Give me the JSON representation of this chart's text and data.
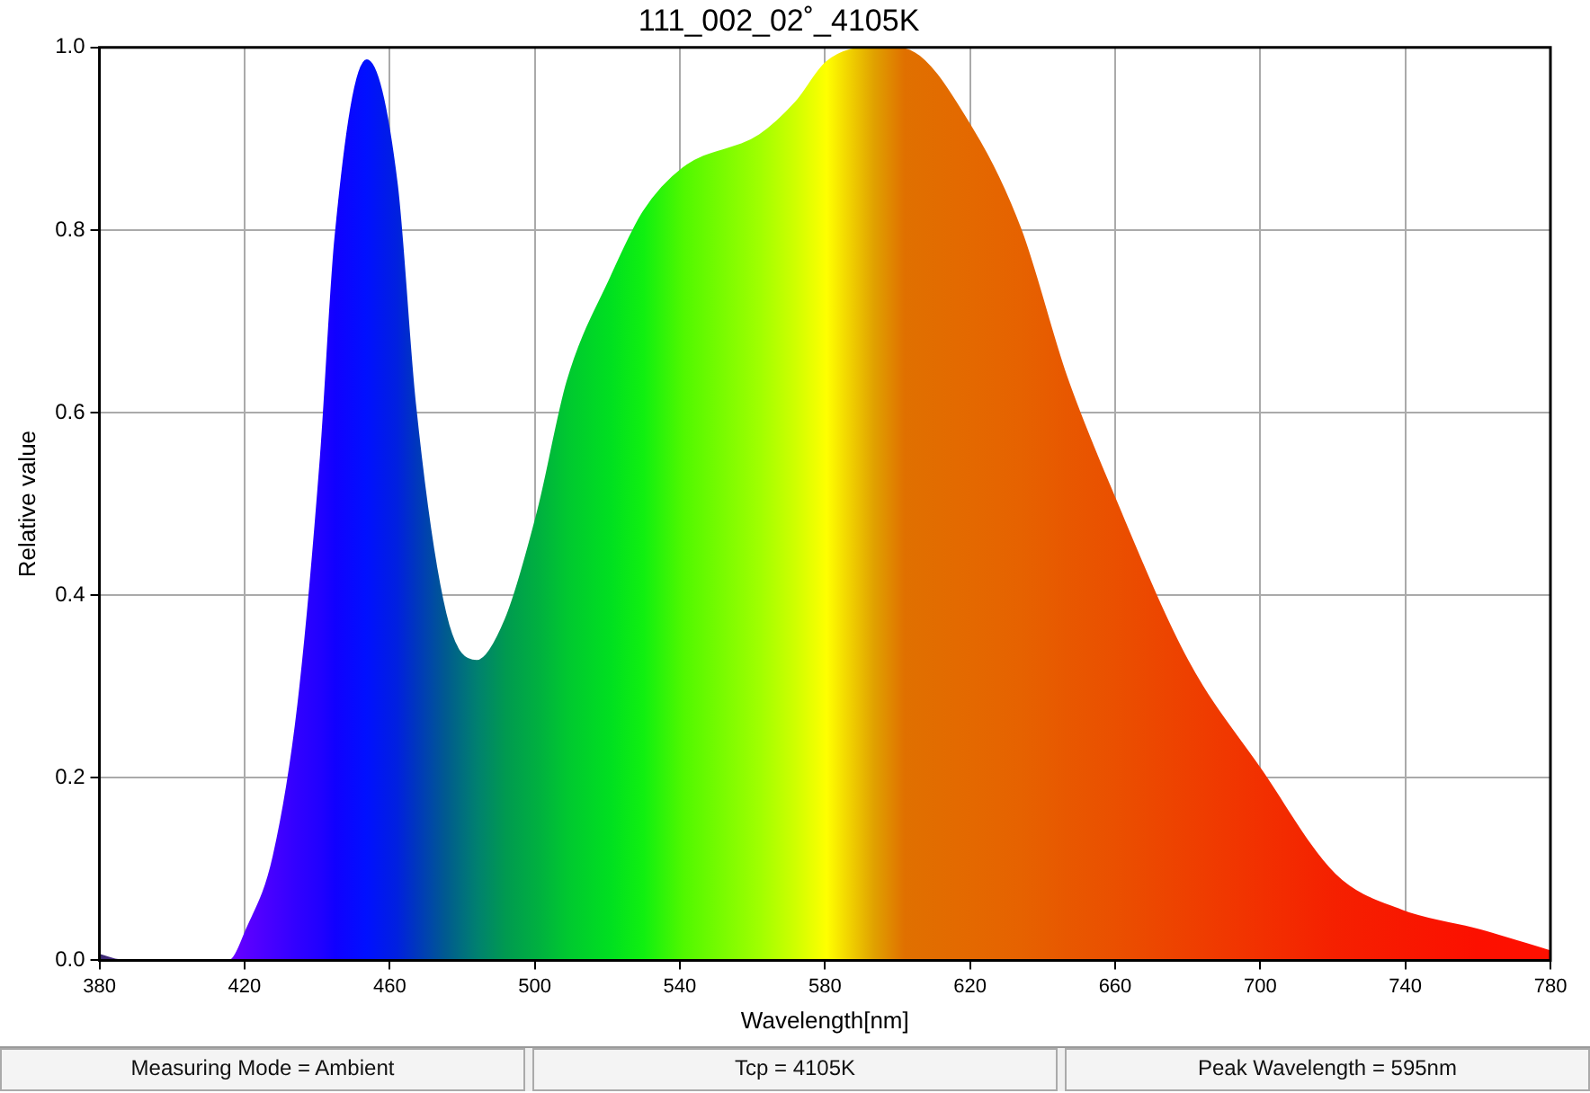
{
  "chart_data": {
    "type": "area",
    "title": "111_002_02˚_4105K",
    "xlabel": "Wavelength[nm]",
    "ylabel": "Relative value",
    "x": [
      380,
      386,
      416,
      420.6,
      428,
      434.8,
      441,
      445,
      453.7,
      462,
      467,
      475.4,
      484,
      492,
      501,
      509,
      521,
      530,
      541,
      562,
      572,
      580.5,
      593.7,
      602,
      621,
      634,
      646.5,
      659.7,
      680,
      700.3,
      720.6,
      739.4,
      759.7,
      780
    ],
    "series": [
      {
        "values": [
          0.006,
          0,
          0,
          0.034,
          0.114,
          0.28,
          0.55,
          0.79,
          0.986,
          0.85,
          0.61,
          0.38,
          0.328,
          0.374,
          0.494,
          0.634,
          0.748,
          0.82,
          0.868,
          0.904,
          0.94,
          0.984,
          1.0,
          0.998,
          0.908,
          0.8,
          0.64,
          0.508,
          0.328,
          0.208,
          0.094,
          0.054,
          0.034,
          0.01
        ],
        "colors": [
          "#3a2a6e",
          "#4a2a8e",
          "#6a00ff",
          "#5a00ff",
          "#4400ff",
          "#3000ff",
          "#2000ff",
          "#1000ff",
          "#0010ff",
          "#0020e0",
          "#0035c0",
          "#005a90",
          "#008070",
          "#009a50",
          "#00b040",
          "#00c830",
          "#00e020",
          "#10f010",
          "#50f800",
          "#a0ff00",
          "#d0ff00",
          "#ffff00",
          "#e0a000",
          "#e07000",
          "#e46800",
          "#e66200",
          "#e85800",
          "#ea5000",
          "#ee4000",
          "#f23000",
          "#f52000",
          "#f81800",
          "#fc1000",
          "#ff1000"
        ]
      }
    ],
    "xlim": [
      380,
      780
    ],
    "xticks": [
      380,
      420,
      460,
      500,
      540,
      580,
      620,
      660,
      700,
      740,
      780
    ],
    "ylim": [
      0,
      1
    ],
    "yticks": [
      {
        "value": 0,
        "label": "0.0"
      },
      {
        "value": 0.2,
        "label": "0.2"
      },
      {
        "value": 0.4,
        "label": "0.4"
      },
      {
        "value": 0.6,
        "label": "0.6"
      },
      {
        "value": 0.8,
        "label": "0.8"
      },
      {
        "value": 1,
        "label": "1.0"
      }
    ],
    "grid": true,
    "marker": "none",
    "annotations": [
      "Measuring Mode = Ambient",
      "Tcp = 4105K",
      "Peak Wavelength = 595nm"
    ]
  }
}
